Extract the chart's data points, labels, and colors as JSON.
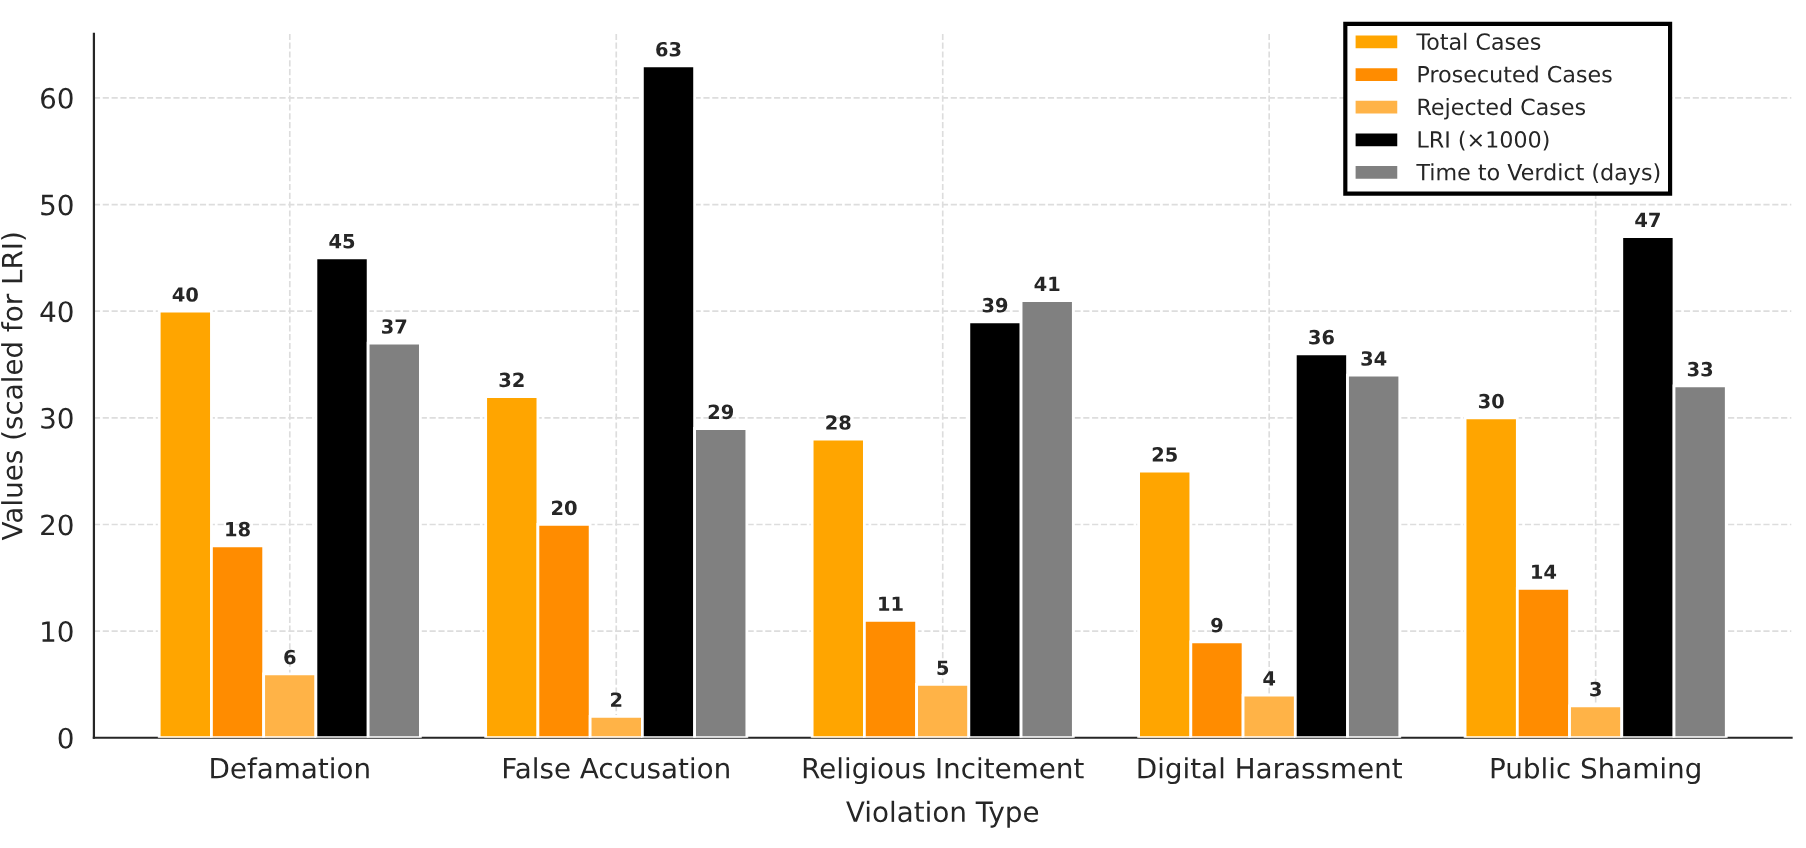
{
  "chart_data": {
    "type": "bar",
    "xlabel": "Violation Type",
    "ylabel": "Values (scaled for LRI)",
    "categories": [
      "Defamation",
      "False Accusation",
      "Religious Incitement",
      "Digital Harassment",
      "Public Shaming"
    ],
    "series": [
      {
        "name": "Total Cases",
        "color": "#ffa500",
        "values": [
          40,
          32,
          28,
          25,
          30
        ]
      },
      {
        "name": "Prosecuted Cases",
        "color": "#ff8c00",
        "values": [
          18,
          20,
          11,
          9,
          14
        ]
      },
      {
        "name": "Rejected Cases",
        "color": "#ffb347",
        "values": [
          6,
          2,
          5,
          4,
          3
        ]
      },
      {
        "name": "LRI (×1000)",
        "color": "#000000",
        "values": [
          45,
          63,
          39,
          36,
          47
        ]
      },
      {
        "name": "Time to Verdict (days)",
        "color": "#808080",
        "values": [
          37,
          29,
          41,
          34,
          33
        ]
      }
    ],
    "ylim": [
      0,
      66
    ],
    "yticks": [
      0,
      10,
      20,
      30,
      40,
      50,
      60
    ],
    "grid": true,
    "legend": "top right",
    "data_labels": true
  }
}
